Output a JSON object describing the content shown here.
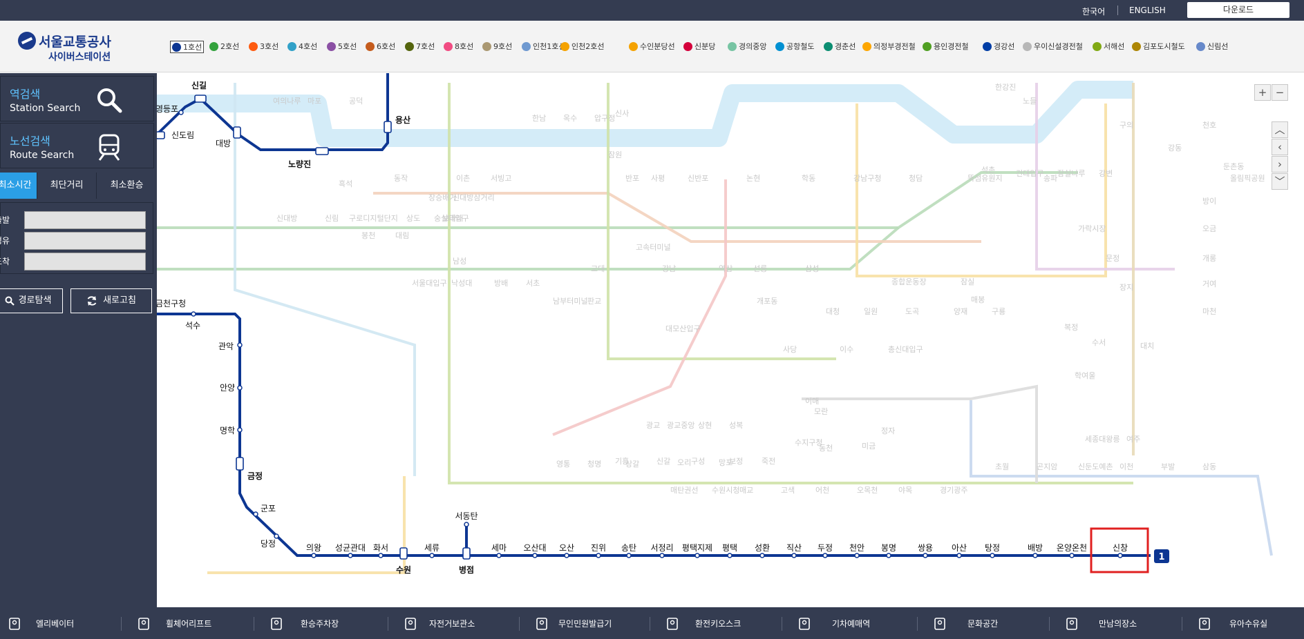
{
  "topbar": {
    "lang_ko": "한국어",
    "lang_en": "ENGLISH",
    "download": "다운로드"
  },
  "logo": {
    "title": "서울교통공사",
    "subtitle": "사이버스테이션"
  },
  "lines": [
    {
      "label": "1호선",
      "color": "#0d3692",
      "n": "1"
    },
    {
      "label": "2호선",
      "color": "#33a23d",
      "n": "2"
    },
    {
      "label": "3호선",
      "color": "#fe5b10",
      "n": "3"
    },
    {
      "label": "4호선",
      "color": "#32a1c8",
      "n": "4"
    },
    {
      "label": "5호선",
      "color": "#8b50a4",
      "n": "5"
    },
    {
      "label": "6호선",
      "color": "#c55c1d",
      "n": "6"
    },
    {
      "label": "7호선",
      "color": "#54640d",
      "n": "7"
    },
    {
      "label": "8호선",
      "color": "#f14c82",
      "n": "8"
    },
    {
      "label": "9호선",
      "color": "#aa9872",
      "n": "9"
    },
    {
      "label": "인천1호선",
      "color": "#6f99d0",
      "n": "I1"
    },
    {
      "label": "인천2호선",
      "color": "#f5a200",
      "n": "I2"
    },
    {
      "label": "수인분당선",
      "color": "#f5a200",
      "n": "수"
    },
    {
      "label": "신분당",
      "color": "#d4003b",
      "n": "신"
    },
    {
      "label": "경의중앙",
      "color": "#77c4a3",
      "n": "경"
    },
    {
      "label": "공항철도",
      "color": "#0090d2",
      "n": "공"
    },
    {
      "label": "경춘선",
      "color": "#0c8e72",
      "n": "춘"
    },
    {
      "label": "의정부경전철",
      "color": "#fda600",
      "n": "의"
    },
    {
      "label": "용인경전철",
      "color": "#509f22",
      "n": "용"
    },
    {
      "label": "경강선",
      "color": "#003da5",
      "n": "강"
    },
    {
      "label": "우이신설경전철",
      "color": "#b7b7b7",
      "n": "우"
    },
    {
      "label": "서해선",
      "color": "#81a914",
      "n": "서"
    },
    {
      "label": "김포도시철도",
      "color": "#ad8605",
      "n": "김"
    },
    {
      "label": "신림선",
      "color": "#6789ca",
      "n": "림"
    }
  ],
  "sidebar": {
    "station_search": {
      "ko": "역검색",
      "en": "Station Search"
    },
    "route_search": {
      "ko": "노선검색",
      "en": "Route Search"
    },
    "tabs": [
      "최소시간",
      "최단거리",
      "최소환승"
    ],
    "fields": [
      {
        "label": "출발",
        "value": ""
      },
      {
        "label": "경유",
        "value": ""
      },
      {
        "label": "도착",
        "value": ""
      }
    ],
    "search_btn": "경로탐색",
    "refresh_btn": "새로고침"
  },
  "map": {
    "line_badge": "1",
    "stations_top": [
      "신길",
      "영등포",
      "신도림",
      "대방",
      "노량진",
      "용산"
    ],
    "stations_branch": [
      "금천구청",
      "석수",
      "관악",
      "안양",
      "명학",
      "금정",
      "군포",
      "당정"
    ],
    "stations_main": [
      "의왕",
      "성균관대",
      "화서",
      "수원",
      "세류",
      "병점",
      "세마",
      "오산대",
      "오산",
      "진위",
      "송탄",
      "서정리",
      "평택지제",
      "평택",
      "성환",
      "직산",
      "두정",
      "천안",
      "봉명",
      "쌍용",
      "아산",
      "탕정",
      "배방",
      "온양온천",
      "신창"
    ],
    "stations_spur": [
      "서동탄"
    ],
    "faded_labels": [
      "여의나루",
      "마포",
      "공덕",
      "한강진",
      "노들",
      "흑석",
      "동작",
      "이촌",
      "서빙고",
      "한남",
      "옥수",
      "압구정",
      "신사",
      "잠원",
      "반포",
      "사평",
      "신반포",
      "논현",
      "학동",
      "강남구청",
      "청담",
      "뚝섬유원지",
      "건대입구",
      "잠실나루",
      "강변",
      "구의",
      "천호",
      "강동",
      "둔촌동",
      "올림픽공원",
      "방이",
      "오금",
      "개롱",
      "거여",
      "마천",
      "고속터미널",
      "교대",
      "강남",
      "역삼",
      "선릉",
      "삼성",
      "종합운동장",
      "잠실",
      "석촌",
      "송파",
      "가락시장",
      "문정",
      "장지",
      "복정",
      "수서",
      "대치",
      "학여울",
      "대청",
      "일원",
      "도곡",
      "양재",
      "매봉",
      "구룡",
      "개포동",
      "대모산입구",
      "사당",
      "이수",
      "총신대입구",
      "남성",
      "숭실대입구",
      "상도",
      "장승배기",
      "신대방삼거리",
      "보라매",
      "대림",
      "구로디지털단지",
      "신대방",
      "신림",
      "봉천",
      "서울대입구",
      "낙성대",
      "방배",
      "서초",
      "남부터미널",
      "판교",
      "이매",
      "모란",
      "정자",
      "미금",
      "동천",
      "수지구청",
      "성복",
      "상현",
      "광교중앙",
      "광교",
      "기흥",
      "신갈",
      "구성",
      "보정",
      "죽전",
      "오리",
      "망포",
      "영통",
      "청명",
      "상갈",
      "매탄권선",
      "수원시청",
      "매교",
      "고색",
      "어천",
      "오목천",
      "야목",
      "경기광주",
      "초월",
      "곤지암",
      "신둔도예촌",
      "이천",
      "부발",
      "삼동",
      "세종대왕릉",
      "여주"
    ]
  },
  "facilities": [
    "엘리베이터",
    "휠체어리프트",
    "환승주차장",
    "자전거보관소",
    "무인민원발급기",
    "환전키오스크",
    "기차예매역",
    "문화공간",
    "만남의장소",
    "유아수유실"
  ]
}
